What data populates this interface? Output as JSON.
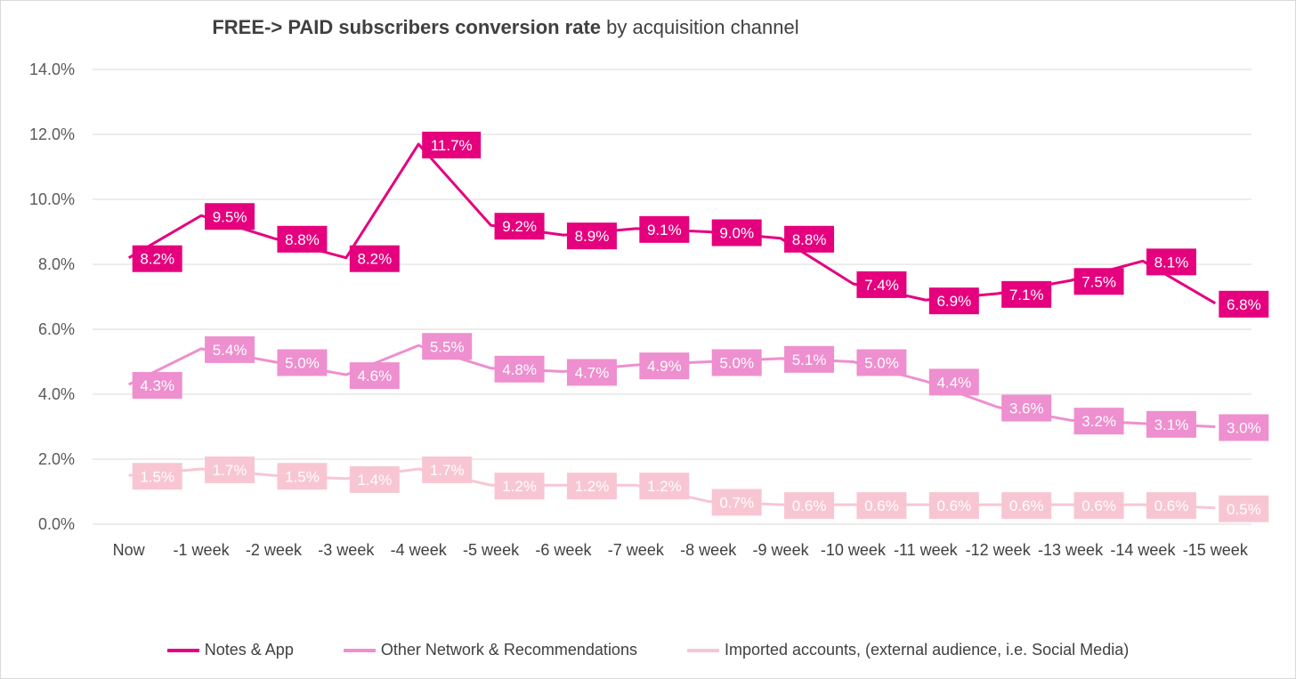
{
  "chart_data": {
    "type": "line",
    "title_bold": "FREE-> PAID subscribers conversion rate",
    "title_rest": " by acquisition channel",
    "categories": [
      "Now",
      "-1 week",
      "-2 week",
      "-3 week",
      "-4 week",
      "-5 week",
      "-6 week",
      "-7 week",
      "-8 week",
      "-9 week",
      "-10 week",
      "-11 week",
      "-12 week",
      "-13 week",
      "-14 week",
      "-15 week"
    ],
    "y_ticks": [
      "0.0%",
      "2.0%",
      "4.0%",
      "6.0%",
      "8.0%",
      "10.0%",
      "12.0%",
      "14.0%"
    ],
    "ylim": [
      0,
      14
    ],
    "grid": true,
    "legend_position": "bottom",
    "series": [
      {
        "name": "Notes & App",
        "color": "#e5007e",
        "label_text_color": "#ffffff",
        "values": [
          8.2,
          9.5,
          8.8,
          8.2,
          11.7,
          9.2,
          8.9,
          9.1,
          9.0,
          8.8,
          7.4,
          6.9,
          7.1,
          7.5,
          8.1,
          6.8
        ],
        "labels": [
          "8.2%",
          "9.5%",
          "8.8%",
          "8.2%",
          "11.7%",
          "9.2%",
          "8.9%",
          "9.1%",
          "9.0%",
          "8.8%",
          "7.4%",
          "6.9%",
          "7.1%",
          "7.5%",
          "8.1%",
          "6.8%"
        ]
      },
      {
        "name": "Other Network & Recommendations",
        "color": "#ee8fcf",
        "label_text_color": "#ffffff",
        "values": [
          4.3,
          5.4,
          5.0,
          4.6,
          5.5,
          4.8,
          4.7,
          4.9,
          5.0,
          5.1,
          5.0,
          4.4,
          3.6,
          3.2,
          3.1,
          3.0
        ],
        "labels": [
          "4.3%",
          "5.4%",
          "5.0%",
          "4.6%",
          "5.5%",
          "4.8%",
          "4.7%",
          "4.9%",
          "5.0%",
          "5.1%",
          "5.0%",
          "4.4%",
          "3.6%",
          "3.2%",
          "3.1%",
          "3.0%"
        ]
      },
      {
        "name": "Imported accounts, (external audience, i.e. Social Media)",
        "color": "#f8c6d3",
        "label_text_color": "#ffffff",
        "values": [
          1.5,
          1.7,
          1.5,
          1.4,
          1.7,
          1.2,
          1.2,
          1.2,
          0.7,
          0.6,
          0.6,
          0.6,
          0.6,
          0.6,
          0.6,
          0.5
        ],
        "labels": [
          "1.5%",
          "1.7%",
          "1.5%",
          "1.4%",
          "1.7%",
          "1.2%",
          "1.2%",
          "1.2%",
          "0.7%",
          "0.6%",
          "0.6%",
          "0.6%",
          "0.6%",
          "0.6%",
          "0.6%",
          "0.5%"
        ]
      }
    ]
  }
}
